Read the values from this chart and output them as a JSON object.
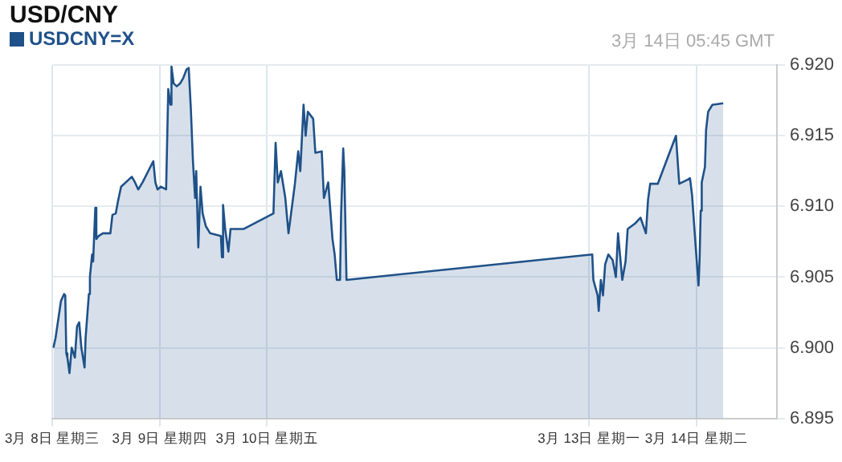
{
  "chart_data": {
    "type": "area",
    "title": "USD/CNY",
    "annotations": [
      "3月 14日 05:45 GMT"
    ],
    "legend": "top left",
    "grid": true,
    "marker": "none",
    "line_style": "solid",
    "xlim": [
      "--03-08",
      "--03-14T18:00"
    ],
    "xticks": [
      {
        "value": "--03-08",
        "label": "3月 8日 星期三"
      },
      {
        "value": "--03-09",
        "label": "3月 9日 星期四"
      },
      {
        "value": "--03-10",
        "label": "3月 10日 星期五"
      },
      {
        "value": "--03-13",
        "label": "3月 13日 星期一"
      },
      {
        "value": "--03-14",
        "label": "3月 14日 星期二"
      }
    ],
    "ylim": [
      6.895,
      6.92
    ],
    "yticks": [
      {
        "value": 6.895,
        "label": "6.895"
      },
      {
        "value": 6.9,
        "label": "6.900"
      },
      {
        "value": 6.905,
        "label": "6.905"
      },
      {
        "value": 6.91,
        "label": "6.910"
      },
      {
        "value": 6.915,
        "label": "6.915"
      },
      {
        "value": 6.92,
        "label": "6.920"
      }
    ],
    "series": [
      {
        "name": "USDCNY=X",
        "color": "#1f5189",
        "x": [
          "--03-08T00:14",
          "--03-08T00:43",
          "--03-08T01:55",
          "--03-08T02:38",
          "--03-08T02:53",
          "--03-08T03:07",
          "--03-08T03:22",
          "--03-08T03:50",
          "--03-08T04:19",
          "--03-08T05:02",
          "--03-08T05:31",
          "--03-08T06:00",
          "--03-08T06:29",
          "--03-08T07:12",
          "--03-08T07:26",
          "--03-08T08:10",
          "--03-08T08:24",
          "--03-08T08:53",
          "--03-08T09:07",
          "--03-08T09:36",
          "--03-08T09:50",
          "--03-08T10:19",
          "--03-08T11:17",
          "--03-08T12:58",
          "--03-08T13:26",
          "--03-08T14:10",
          "--03-08T14:38",
          "--03-08T15:22",
          "--03-08T17:46",
          "--03-08T18:29",
          "--03-08T19:12",
          "--03-08T20:10",
          "--03-08T22:34",
          "--03-08T23:02",
          "--03-08T23:31",
          "--03-09T00:14",
          "--03-09T01:26",
          "--03-09T01:55",
          "--03-09T02:24",
          "--03-09T02:38",
          "--03-09T03:07",
          "--03-09T03:50",
          "--03-09T04:34",
          "--03-09T05:17",
          "--03-09T06:00",
          "--03-09T06:29",
          "--03-09T06:58",
          "--03-09T07:26",
          "--03-09T07:55",
          "--03-09T08:10",
          "--03-09T08:38",
          "--03-09T09:07",
          "--03-09T09:36",
          "--03-09T10:19",
          "--03-09T11:17",
          "--03-09T13:41",
          "--03-09T13:55",
          "--03-09T14:10",
          "--03-09T14:38",
          "--03-09T15:22",
          "--03-09T15:50",
          "--03-09T18:43",
          "--03-10T01:26",
          "--03-10T01:55",
          "--03-10T02:24",
          "--03-10T03:07",
          "--03-10T04:05",
          "--03-10T04:48",
          "--03-10T06:14",
          "--03-10T06:58",
          "--03-10T07:26",
          "--03-10T08:10",
          "--03-10T08:38",
          "--03-10T09:07",
          "--03-10T10:19",
          "--03-10T10:48",
          "--03-10T12:14",
          "--03-10T12:43",
          "--03-10T13:41",
          "--03-10T14:38",
          "--03-10T15:07",
          "--03-10T15:36",
          "--03-10T16:19",
          "--03-10T16:34",
          "--03-10T17:02",
          "--03-10T17:17",
          "--03-10T17:46",
          "--03-13T00:43",
          "--03-13T00:58",
          "--03-13T01:55",
          "--03-13T02:10",
          "--03-13T02:38",
          "--03-13T03:07",
          "--03-13T03:36",
          "--03-13T04:19",
          "--03-13T05:17",
          "--03-13T06:00",
          "--03-13T06:29",
          "--03-13T07:26",
          "--03-13T08:10",
          "--03-13T08:38",
          "--03-13T10:19",
          "--03-13T11:31",
          "--03-13T12:43",
          "--03-13T13:12",
          "--03-13T13:41",
          "--03-13T15:22",
          "--03-13T19:26",
          "--03-13T20:10",
          "--03-13T22:05",
          "--03-13T22:34",
          "--03-13T23:02",
          "--03-13T23:46",
          "--03-14T00:29",
          "--03-14T00:43",
          "--03-14T00:58",
          "--03-14T01:12",
          "--03-14T01:55",
          "--03-14T02:10",
          "--03-14T02:38",
          "--03-14T03:36",
          "--03-14T03:50",
          "--03-14T06:00"
        ],
        "values": [
          6.9,
          6.9007,
          6.9033,
          6.9038,
          6.9037,
          6.8996,
          6.8993,
          6.8982,
          6.9,
          6.8993,
          6.9015,
          6.9018,
          6.9,
          6.8986,
          6.9007,
          6.9038,
          6.905,
          6.9066,
          6.9061,
          6.9099,
          6.9077,
          6.9079,
          6.9081,
          6.9081,
          6.9094,
          6.9095,
          6.9103,
          6.9114,
          6.9121,
          6.9117,
          6.9112,
          6.9117,
          6.9132,
          6.9117,
          6.9112,
          6.9114,
          6.9112,
          6.9183,
          6.9172,
          6.9199,
          6.9187,
          6.9185,
          6.9187,
          6.9191,
          6.9197,
          6.9198,
          6.9169,
          6.9132,
          6.9106,
          6.9125,
          6.9071,
          6.9114,
          6.9095,
          6.9086,
          6.9081,
          6.9079,
          6.9064,
          6.9101,
          6.9084,
          6.9068,
          6.9084,
          6.9084,
          6.9095,
          6.9145,
          6.9117,
          6.9125,
          6.9106,
          6.9081,
          6.9116,
          6.9139,
          6.9125,
          6.9172,
          6.915,
          6.9167,
          6.9162,
          6.9138,
          6.9139,
          6.9106,
          6.9117,
          6.9077,
          6.9066,
          6.9048,
          6.9048,
          6.9095,
          6.9141,
          6.9125,
          6.9048,
          6.9066,
          6.9048,
          6.9037,
          6.9026,
          6.9048,
          6.9037,
          6.9059,
          6.9066,
          6.9062,
          6.905,
          6.9081,
          6.9048,
          6.9061,
          6.9084,
          6.9088,
          6.9092,
          6.9081,
          6.9105,
          6.9116,
          6.9116,
          6.915,
          6.9116,
          6.9119,
          6.912,
          6.9108,
          6.9075,
          6.9044,
          6.9062,
          6.9097,
          6.9117,
          6.9128,
          6.9154,
          6.9167,
          6.9172,
          6.9172,
          6.9173
        ]
      }
    ]
  }
}
